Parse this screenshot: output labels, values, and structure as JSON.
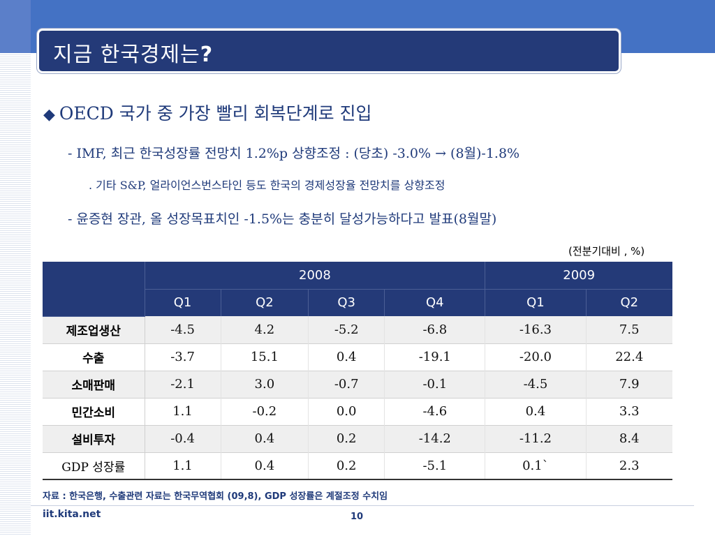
{
  "title": {
    "main": "지금 한국경제는",
    "mark": "?"
  },
  "bullet": {
    "symbol": "◆",
    "text": "OECD 국가 중 가장 빨리 회복단계로 진입"
  },
  "lines": [
    "- IMF, 최근 한국성장률 전망치 1.2%p 상향조정 : (당초) -3.0% → (8월)-1.8%",
    ". 기타 S&P, 얼라이언스번스타인 등도 한국의 경제성장율 전망치를 상향조정",
    "- 윤증현 장관, 올 성장목표치인 -1.5%는 충분히 달성가능하다고 발표(8월말)"
  ],
  "table": {
    "unit": "(전분기대비 , %)",
    "years": [
      "2008",
      "2009"
    ],
    "quarters": [
      "Q1",
      "Q2",
      "Q3",
      "Q4",
      "Q1",
      "Q2"
    ],
    "rows": [
      {
        "label": "제조업생산",
        "values": [
          "-4.5",
          "4.2",
          "-5.2",
          "-6.8",
          "-16.3",
          "7.5"
        ]
      },
      {
        "label": "수출",
        "values": [
          "-3.7",
          "15.1",
          "0.4",
          "-19.1",
          "-20.0",
          "22.4"
        ]
      },
      {
        "label": "소매판매",
        "values": [
          "-2.1",
          "3.0",
          "-0.7",
          "-0.1",
          "-4.5",
          "7.9"
        ]
      },
      {
        "label": "민간소비",
        "values": [
          "1.1",
          "-0.2",
          "0.0",
          "-4.6",
          "0.4",
          "3.3"
        ]
      },
      {
        "label": "설비투자",
        "values": [
          "-0.4",
          "0.4",
          "0.2",
          "-14.2",
          "-11.2",
          "8.4"
        ]
      },
      {
        "label": "GDP 성장률",
        "values": [
          "1.1",
          "0.4",
          "0.2",
          "-5.1",
          "0.1`",
          "2.3"
        ]
      }
    ]
  },
  "source": "자료 : 한국은행, 수출관련 자료는 한국무역협회 (09,8), GDP 성장률은 계절조정 수치임",
  "footer": {
    "site": "iit.kita.net",
    "page": "10"
  },
  "colors": {
    "accent": "#243a78",
    "band": "#4472c4",
    "text": "#1f3a7a"
  }
}
